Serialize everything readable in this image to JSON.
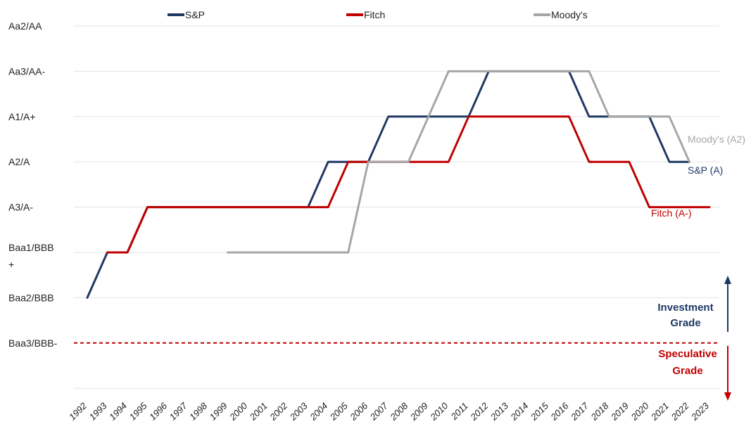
{
  "chart_data": {
    "type": "line",
    "title": "",
    "xlabel": "",
    "ylabel": "",
    "x": [
      1992,
      1993,
      1994,
      1995,
      1996,
      1997,
      1998,
      1999,
      2000,
      2001,
      2002,
      2003,
      2004,
      2005,
      2006,
      2007,
      2008,
      2009,
      2010,
      2011,
      2012,
      2013,
      2014,
      2015,
      2016,
      2017,
      2018,
      2019,
      2020,
      2021,
      2022,
      2023
    ],
    "y_categories": [
      {
        "label": "Baa3/BBB-",
        "level": 0
      },
      {
        "label": "Baa2/BBB",
        "level": 1
      },
      {
        "label": "Baa1/BBB+",
        "level": 2
      },
      {
        "label": "A3/A-",
        "level": 3
      },
      {
        "label": "A2/A",
        "level": 4
      },
      {
        "label": "A1/A+",
        "level": 5
      },
      {
        "label": "Aa3/AA-",
        "level": 6
      },
      {
        "label": "Aa2/AA",
        "level": 7
      }
    ],
    "ylim": [
      -1,
      7
    ],
    "grid": true,
    "legend_position": "top",
    "series": [
      {
        "name": "S&P",
        "color": "#1f3864",
        "end_label": "S&P (A)",
        "points": [
          [
            1992,
            1
          ],
          [
            1993,
            2
          ],
          [
            1994,
            2
          ],
          [
            1995,
            3
          ],
          [
            2003,
            3
          ],
          [
            2004,
            4
          ],
          [
            2005,
            4
          ],
          [
            2006,
            4
          ],
          [
            2007,
            5
          ],
          [
            2011,
            5
          ],
          [
            2012,
            6
          ],
          [
            2016,
            6
          ],
          [
            2017,
            5
          ],
          [
            2018,
            5
          ],
          [
            2020,
            5
          ],
          [
            2021,
            4
          ],
          [
            2022,
            4
          ]
        ]
      },
      {
        "name": "Fitch",
        "color": "#c00000",
        "end_label": "Fitch (A-)",
        "points": [
          [
            1993,
            2
          ],
          [
            1994,
            2
          ],
          [
            1995,
            3
          ],
          [
            2004,
            3
          ],
          [
            2005,
            4
          ],
          [
            2010,
            4
          ],
          [
            2011,
            5
          ],
          [
            2016,
            5
          ],
          [
            2017,
            4
          ],
          [
            2019,
            4
          ],
          [
            2020,
            3
          ],
          [
            2023,
            3
          ]
        ]
      },
      {
        "name": "Moody's",
        "color": "#a6a6a6",
        "end_label": "Moody's (A2)",
        "points": [
          [
            1999,
            2
          ],
          [
            2005,
            2
          ],
          [
            2006,
            4
          ],
          [
            2008,
            4
          ],
          [
            2010,
            6
          ],
          [
            2017,
            6
          ],
          [
            2018,
            5
          ],
          [
            2021,
            5
          ],
          [
            2022,
            4
          ]
        ]
      }
    ],
    "threshold": {
      "level": 0,
      "color": "#c00000",
      "style": "dashed"
    },
    "annotations": {
      "investment_grade": {
        "text": [
          "Investment",
          "Grade"
        ],
        "color": "#1f3864"
      },
      "speculative_grade": {
        "text": [
          "Speculative",
          "Grade"
        ],
        "color": "#c00000"
      }
    }
  }
}
